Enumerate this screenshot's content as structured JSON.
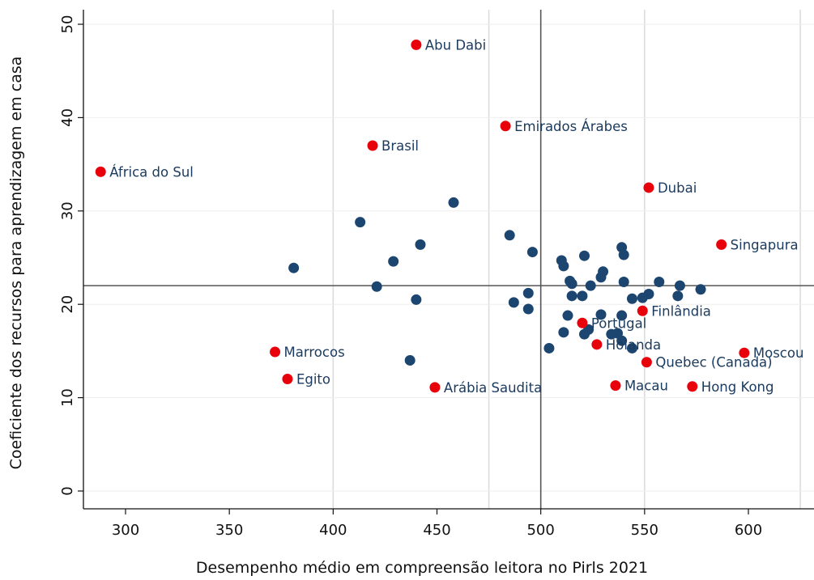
{
  "chart_data": {
    "type": "scatter",
    "xlabel": "Desempenho médio em compreensão leitora no Pirls 2021",
    "ylabel": "Coeficiente dos recursos para aprendizagem em casa",
    "xlim": [
      280,
      630
    ],
    "ylim": [
      -2,
      52
    ],
    "xticks": [
      300,
      350,
      400,
      450,
      500,
      550,
      600
    ],
    "yticks": [
      0,
      10,
      20,
      30,
      40,
      50
    ],
    "x_gridlines": [
      400,
      475,
      550,
      625
    ],
    "reference_lines": {
      "x": 500,
      "y": 22
    },
    "colors": {
      "highlighted": "#e8000b",
      "other": "#1c4670",
      "label": "#1a3a5e",
      "grid": "#dcdcdc",
      "reference": "#555555"
    },
    "highlighted": [
      {
        "label": "Abu Dabi",
        "x": 440,
        "y": 47.8
      },
      {
        "label": "Emirados Árabes",
        "x": 483,
        "y": 39.1
      },
      {
        "label": "Brasil",
        "x": 419,
        "y": 37.0
      },
      {
        "label": "África do Sul",
        "x": 288,
        "y": 34.2
      },
      {
        "label": "Dubai",
        "x": 552,
        "y": 32.5
      },
      {
        "label": "Singapura",
        "x": 587,
        "y": 26.4
      },
      {
        "label": "Finlândia",
        "x": 549,
        "y": 19.3
      },
      {
        "label": "Portugal",
        "x": 520,
        "y": 18.0
      },
      {
        "label": "Holanda",
        "x": 527,
        "y": 15.7
      },
      {
        "label": "Marrocos",
        "x": 372,
        "y": 14.9
      },
      {
        "label": "Quebec (Canada)",
        "x": 551,
        "y": 13.8
      },
      {
        "label": "Moscou",
        "x": 598,
        "y": 14.8
      },
      {
        "label": "Egito",
        "x": 378,
        "y": 12.0
      },
      {
        "label": "Arábia Saudita",
        "x": 449,
        "y": 11.1
      },
      {
        "label": "Macau",
        "x": 536,
        "y": 11.3
      },
      {
        "label": "Hong Kong",
        "x": 573,
        "y": 11.2
      }
    ],
    "others": [
      {
        "x": 381,
        "y": 23.9
      },
      {
        "x": 413,
        "y": 28.8
      },
      {
        "x": 421,
        "y": 21.9
      },
      {
        "x": 429,
        "y": 24.6
      },
      {
        "x": 440,
        "y": 20.5
      },
      {
        "x": 442,
        "y": 26.4
      },
      {
        "x": 437,
        "y": 14.0
      },
      {
        "x": 458,
        "y": 30.9
      },
      {
        "x": 485,
        "y": 27.4
      },
      {
        "x": 487,
        "y": 20.2
      },
      {
        "x": 494,
        "y": 21.2
      },
      {
        "x": 494,
        "y": 19.5
      },
      {
        "x": 496,
        "y": 25.6
      },
      {
        "x": 504,
        "y": 15.3
      },
      {
        "x": 510,
        "y": 24.7
      },
      {
        "x": 511,
        "y": 24.1
      },
      {
        "x": 511,
        "y": 17.0
      },
      {
        "x": 513,
        "y": 18.8
      },
      {
        "x": 514,
        "y": 22.5
      },
      {
        "x": 515,
        "y": 22.2
      },
      {
        "x": 515,
        "y": 20.9
      },
      {
        "x": 520,
        "y": 20.9
      },
      {
        "x": 521,
        "y": 25.2
      },
      {
        "x": 521,
        "y": 16.8
      },
      {
        "x": 523,
        "y": 17.3
      },
      {
        "x": 524,
        "y": 22.0
      },
      {
        "x": 529,
        "y": 22.9
      },
      {
        "x": 529,
        "y": 18.9
      },
      {
        "x": 530,
        "y": 23.5
      },
      {
        "x": 534,
        "y": 16.8
      },
      {
        "x": 537,
        "y": 16.9
      },
      {
        "x": 539,
        "y": 26.1
      },
      {
        "x": 539,
        "y": 18.8
      },
      {
        "x": 539,
        "y": 16.1
      },
      {
        "x": 540,
        "y": 25.3
      },
      {
        "x": 540,
        "y": 22.4
      },
      {
        "x": 544,
        "y": 20.6
      },
      {
        "x": 544,
        "y": 15.3
      },
      {
        "x": 549,
        "y": 20.7
      },
      {
        "x": 552,
        "y": 21.1
      },
      {
        "x": 557,
        "y": 22.4
      },
      {
        "x": 566,
        "y": 20.9
      },
      {
        "x": 567,
        "y": 22.0
      },
      {
        "x": 577,
        "y": 21.6
      }
    ]
  }
}
